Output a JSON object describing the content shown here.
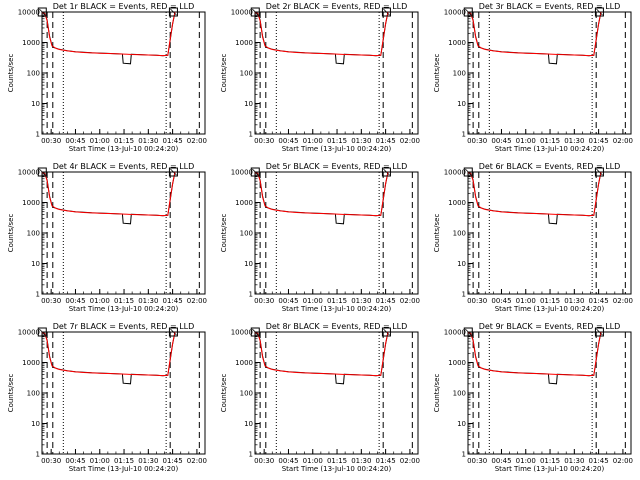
{
  "ui": {
    "title_suffix": "BLACK = Events, RED = LLD",
    "xlabel": "Start Time (13-Jul-10 00:24:20)",
    "ylabel": "Counts/sec",
    "colors": {
      "events": "#000000",
      "lld": "#ff0000",
      "axes": "#000000"
    }
  },
  "chart_data": [
    {
      "type": "line",
      "title": "Det 1r  BLACK = Events, RED = LLD",
      "ylog": true,
      "ylim": [
        1,
        10000
      ],
      "xlim": [
        "00:24:20",
        "02:05:00"
      ],
      "xticks": [
        "00:30",
        "00:45",
        "01:00",
        "01:15",
        "01:30",
        "01:45",
        "02:00"
      ],
      "yticks": [
        "1",
        "10",
        "100",
        "1000",
        "10000"
      ],
      "xlabel": "Start Time (13-Jul-10 00:24:20)",
      "ylabel": "Counts/sec",
      "grid": false,
      "dip": 1
    },
    {
      "type": "line",
      "title": "Det 2r  BLACK = Events, RED = LLD",
      "ylog": true,
      "ylim": [
        1,
        10000
      ],
      "xlim": [
        "00:24:20",
        "02:05:00"
      ],
      "xticks": [
        "00:30",
        "00:45",
        "01:00",
        "01:15",
        "01:30",
        "01:45",
        "02:00"
      ],
      "yticks": [
        "1",
        "10",
        "100",
        "1000",
        "10000"
      ],
      "xlabel": "Start Time (13-Jul-10 00:24:20)",
      "ylabel": "Counts/sec",
      "grid": false,
      "dip": 1
    },
    {
      "type": "line",
      "title": "Det 3r  BLACK = Events, RED = LLD",
      "ylog": true,
      "ylim": [
        1,
        10000
      ],
      "xlim": [
        "00:24:20",
        "02:05:00"
      ],
      "xticks": [
        "00:30",
        "00:45",
        "01:00",
        "01:15",
        "01:30",
        "01:45",
        "02:00"
      ],
      "yticks": [
        "1",
        "10",
        "100",
        "1000",
        "10000"
      ],
      "xlabel": "Start Time (13-Jul-10 00:24:20)",
      "ylabel": "Counts/sec",
      "grid": false,
      "dip": 1
    },
    {
      "type": "line",
      "title": "Det 4r  BLACK = Events, RED = LLD",
      "ylog": true,
      "ylim": [
        1,
        10000
      ],
      "xlim": [
        "00:24:20",
        "02:05:00"
      ],
      "xticks": [
        "00:30",
        "00:45",
        "01:00",
        "01:15",
        "01:30",
        "01:45",
        "02:00"
      ],
      "yticks": [
        "1",
        "10",
        "100",
        "1000",
        "10000"
      ],
      "xlabel": "Start Time (13-Jul-10 00:24:20)",
      "ylabel": "Counts/sec",
      "grid": false,
      "dip": 1
    },
    {
      "type": "line",
      "title": "Det 5r  BLACK = Events, RED = LLD",
      "ylog": true,
      "ylim": [
        1,
        10000
      ],
      "xlim": [
        "00:24:20",
        "02:05:00"
      ],
      "xticks": [
        "00:30",
        "00:45",
        "01:00",
        "01:15",
        "01:30",
        "01:45",
        "02:00"
      ],
      "yticks": [
        "1",
        "10",
        "100",
        "1000",
        "10000"
      ],
      "xlabel": "Start Time (13-Jul-10 00:24:20)",
      "ylabel": "Counts/sec",
      "grid": false,
      "dip": 1
    },
    {
      "type": "line",
      "title": "Det 6r  BLACK = Events, RED = LLD",
      "ylog": true,
      "ylim": [
        1,
        10000
      ],
      "xlim": [
        "00:24:20",
        "02:05:00"
      ],
      "xticks": [
        "00:30",
        "00:45",
        "01:00",
        "01:15",
        "01:30",
        "01:45",
        "02:00"
      ],
      "yticks": [
        "1",
        "10",
        "100",
        "1000",
        "10000"
      ],
      "xlabel": "Start Time (13-Jul-10 00:24:20)",
      "ylabel": "Counts/sec",
      "grid": false,
      "dip": 1
    },
    {
      "type": "line",
      "title": "Det 7r  BLACK = Events, RED = LLD",
      "ylog": true,
      "ylim": [
        1,
        10000
      ],
      "xlim": [
        "00:24:20",
        "02:05:00"
      ],
      "xticks": [
        "00:30",
        "00:45",
        "01:00",
        "01:15",
        "01:30",
        "01:45",
        "02:00"
      ],
      "yticks": [
        "1",
        "10",
        "100",
        "1000",
        "10000"
      ],
      "xlabel": "Start Time (13-Jul-10 00:24:20)",
      "ylabel": "Counts/sec",
      "grid": false,
      "dip": 1
    },
    {
      "type": "line",
      "title": "Det 8r  BLACK = Events, RED = LLD",
      "ylog": true,
      "ylim": [
        1,
        10000
      ],
      "xlim": [
        "00:24:20",
        "02:05:00"
      ],
      "xticks": [
        "00:30",
        "00:45",
        "01:00",
        "01:15",
        "01:30",
        "01:45",
        "02:00"
      ],
      "yticks": [
        "1",
        "10",
        "100",
        "1000",
        "10000"
      ],
      "xlabel": "Start Time (13-Jul-10 00:24:20)",
      "ylabel": "Counts/sec",
      "grid": false,
      "dip": 1
    },
    {
      "type": "line",
      "title": "Det 9r  BLACK = Events, RED = LLD",
      "ylog": true,
      "ylim": [
        1,
        10000
      ],
      "xlim": [
        "00:24:20",
        "02:05:00"
      ],
      "xticks": [
        "00:30",
        "00:45",
        "01:00",
        "01:15",
        "01:30",
        "01:45",
        "02:00"
      ],
      "yticks": [
        "1",
        "10",
        "100",
        "1000",
        "10000"
      ],
      "xlabel": "Start Time (13-Jul-10 00:24:20)",
      "ylabel": "Counts/sec",
      "grid": false,
      "dip": 1
    }
  ],
  "series_profile": {
    "events": {
      "name": "Events",
      "points": [
        [
          "00:24:20",
          10000
        ],
        [
          "00:26:00",
          9000
        ],
        [
          "00:27:30",
          5500
        ],
        [
          "00:29:00",
          1600
        ],
        [
          "00:30:30",
          800
        ],
        [
          "00:31:00",
          700
        ],
        [
          "00:33:00",
          650
        ],
        [
          "00:35:00",
          600
        ],
        [
          "00:40:00",
          540
        ],
        [
          "00:45:00",
          500
        ],
        [
          "00:50:00",
          480
        ],
        [
          "00:55:00",
          460
        ],
        [
          "01:00:00",
          450
        ],
        [
          "01:05:00",
          440
        ],
        [
          "01:10:00",
          430
        ],
        [
          "01:14:00",
          420
        ],
        [
          "01:14:30",
          210
        ],
        [
          "01:19:00",
          200
        ],
        [
          "01:19:30",
          410
        ],
        [
          "01:25:00",
          400
        ],
        [
          "01:30:00",
          390
        ],
        [
          "01:35:00",
          380
        ],
        [
          "01:39:00",
          370
        ],
        [
          "01:42:00",
          380
        ],
        [
          "01:43:30",
          1200
        ],
        [
          "01:45:00",
          4000
        ],
        [
          "01:46:30",
          10000
        ]
      ]
    },
    "lld": {
      "name": "LLD",
      "points": [
        [
          "00:24:20",
          9500
        ],
        [
          "00:26:00",
          9000
        ],
        [
          "00:27:30",
          5200
        ],
        [
          "00:29:00",
          1500
        ],
        [
          "00:30:30",
          780
        ],
        [
          "00:33:00",
          640
        ],
        [
          "00:35:00",
          590
        ],
        [
          "00:40:00",
          530
        ],
        [
          "00:45:00",
          490
        ],
        [
          "00:50:00",
          470
        ],
        [
          "00:55:00",
          455
        ],
        [
          "01:00:00",
          445
        ],
        [
          "01:05:00",
          435
        ],
        [
          "01:10:00",
          425
        ],
        [
          "01:15:00",
          415
        ],
        [
          "01:20:00",
          405
        ],
        [
          "01:25:00",
          398
        ],
        [
          "01:30:00",
          390
        ],
        [
          "01:35:00",
          382
        ],
        [
          "01:39:00",
          372
        ],
        [
          "01:42:00",
          380
        ],
        [
          "01:43:30",
          1300
        ],
        [
          "01:45:00",
          4200
        ],
        [
          "01:46:30",
          10000
        ]
      ]
    },
    "markers": {
      "dashed": [
        "00:27:30",
        "00:31:00",
        "01:43:30",
        "02:01:30"
      ],
      "dotted": [
        "00:37:30",
        "01:41:00"
      ],
      "boxes": [
        "00:24:30",
        "01:45:30"
      ]
    }
  }
}
